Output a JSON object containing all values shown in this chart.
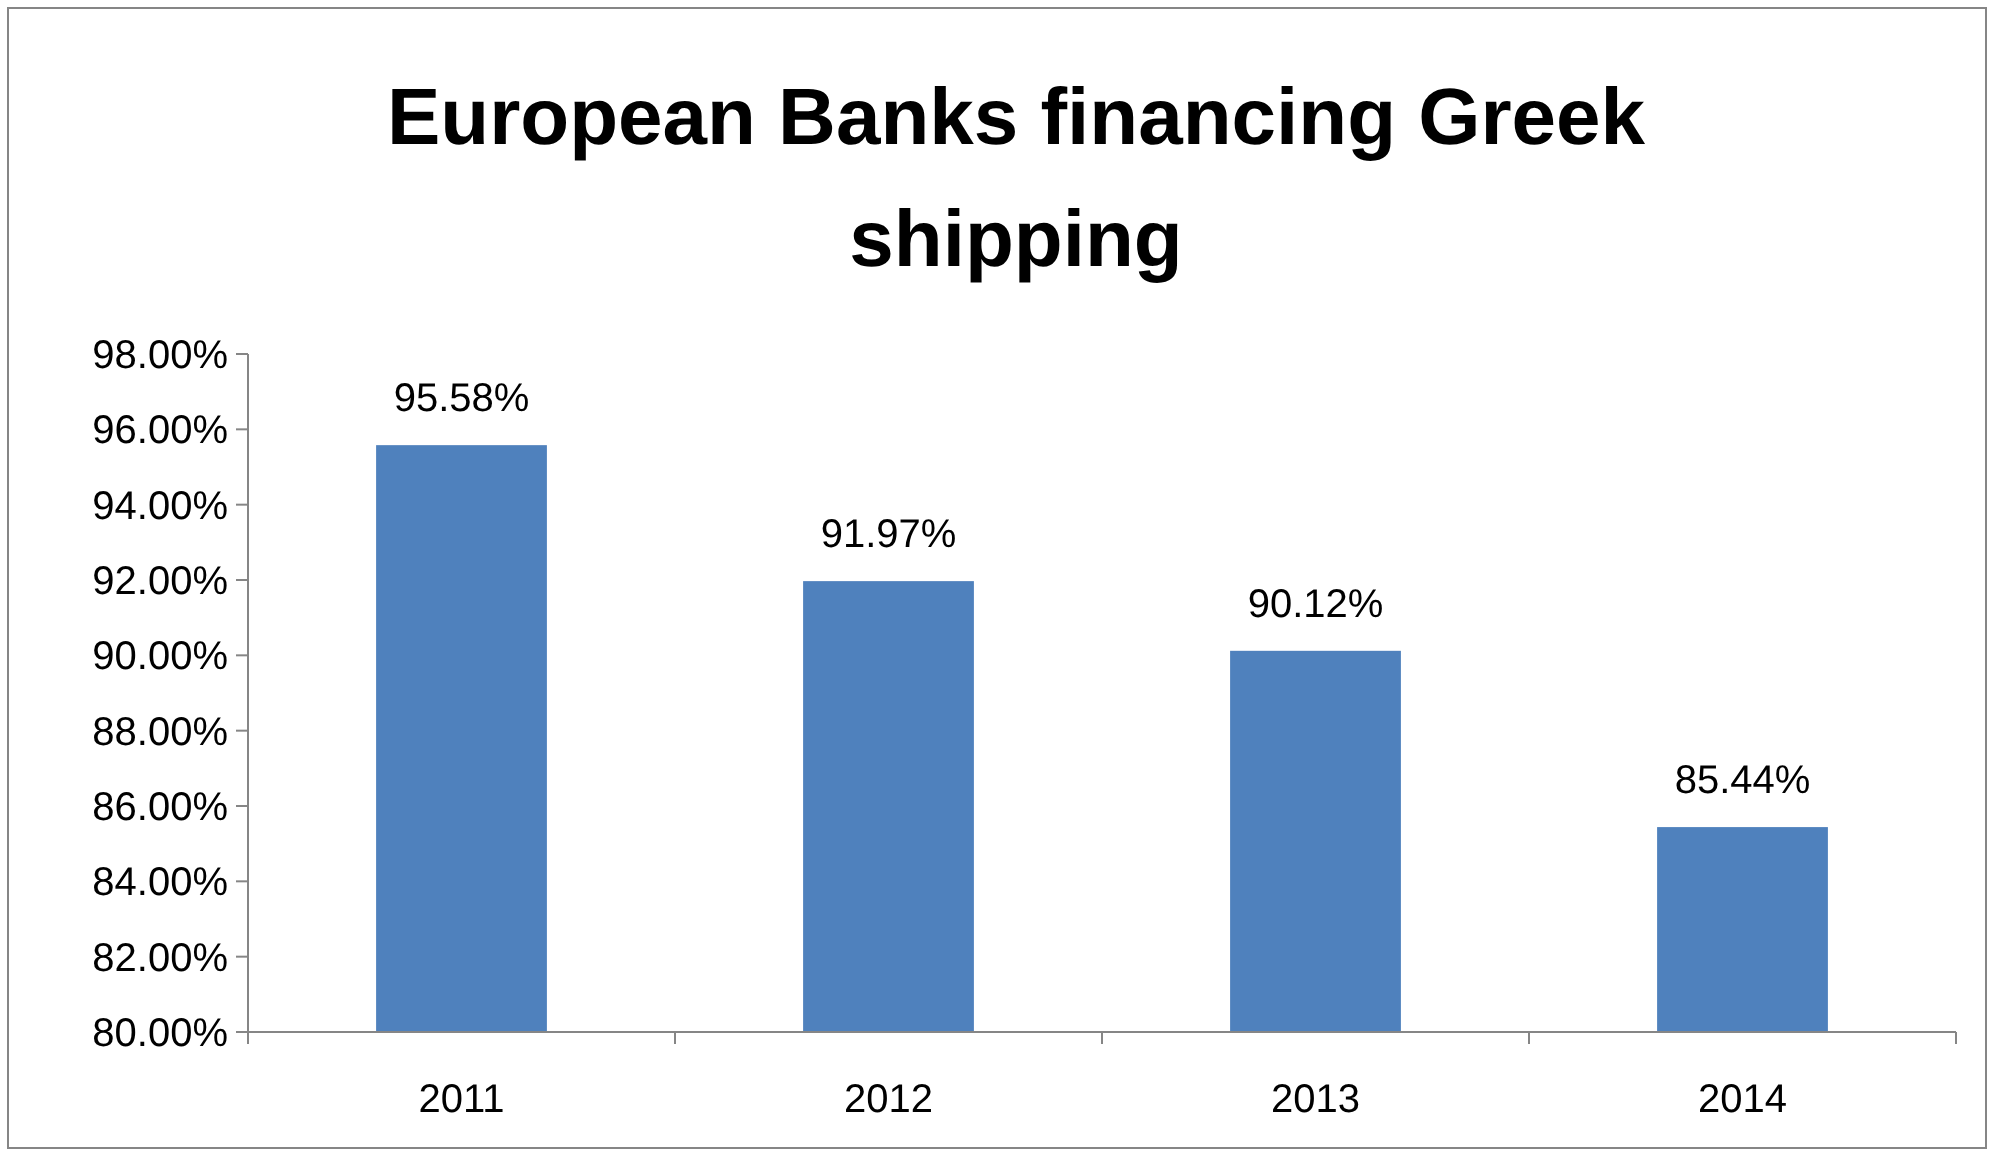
{
  "chart_data": {
    "type": "bar",
    "title": "European Banks financing Greek shipping",
    "categories": [
      "2011",
      "2012",
      "2013",
      "2014"
    ],
    "values": [
      95.58,
      91.97,
      90.12,
      85.44
    ],
    "value_labels": [
      "95.58%",
      "91.97%",
      "90.12%",
      "85.44%"
    ],
    "color": "#4f81bd",
    "ylim": [
      80,
      98
    ],
    "yticks": [
      {
        "value": 80,
        "label": "80.00%"
      },
      {
        "value": 82,
        "label": "82.00%"
      },
      {
        "value": 84,
        "label": "84.00%"
      },
      {
        "value": 86,
        "label": "86.00%"
      },
      {
        "value": 88,
        "label": "88.00%"
      },
      {
        "value": 90,
        "label": "90.00%"
      },
      {
        "value": 92,
        "label": "92.00%"
      },
      {
        "value": 94,
        "label": "94.00%"
      },
      {
        "value": 96,
        "label": "96.00%"
      },
      {
        "value": 98,
        "label": "98.00%"
      }
    ],
    "grid": false
  }
}
